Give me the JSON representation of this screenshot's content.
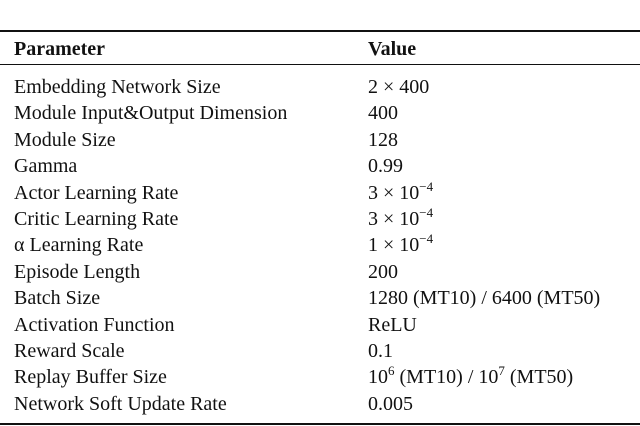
{
  "table": {
    "header": [
      "Parameter",
      "Value"
    ],
    "rows": [
      [
        "Embedding Network Size",
        [
          {
            "text": "2 × 400"
          }
        ]
      ],
      [
        "Module Input&Output Dimension",
        [
          {
            "text": "400"
          }
        ]
      ],
      [
        "Module Size",
        [
          {
            "text": "128"
          }
        ]
      ],
      [
        "Gamma",
        [
          {
            "text": "0.99"
          }
        ]
      ],
      [
        "Actor Learning Rate",
        [
          {
            "text": "3 × 10"
          },
          {
            "text": "−4",
            "sup": true
          }
        ]
      ],
      [
        "Critic Learning Rate",
        [
          {
            "text": "3 × 10"
          },
          {
            "text": "−4",
            "sup": true
          }
        ]
      ],
      [
        "α Learning Rate",
        [
          {
            "text": "1 × 10"
          },
          {
            "text": "−4",
            "sup": true
          }
        ]
      ],
      [
        "Episode Length",
        [
          {
            "text": "200"
          }
        ]
      ],
      [
        "Batch Size",
        [
          {
            "text": "1280 (MT10) / 6400 (MT50)"
          }
        ]
      ],
      [
        "Activation Function",
        [
          {
            "text": "ReLU"
          }
        ]
      ],
      [
        "Reward Scale",
        [
          {
            "text": "0.1"
          }
        ]
      ],
      [
        "Replay Buffer Size",
        [
          {
            "text": "10"
          },
          {
            "text": "6",
            "sup": true
          },
          {
            "text": " (MT10) / 10"
          },
          {
            "text": "7",
            "sup": true
          },
          {
            "text": " (MT50)"
          }
        ]
      ],
      [
        "Network Soft Update Rate",
        [
          {
            "text": "0.005"
          }
        ]
      ]
    ]
  }
}
